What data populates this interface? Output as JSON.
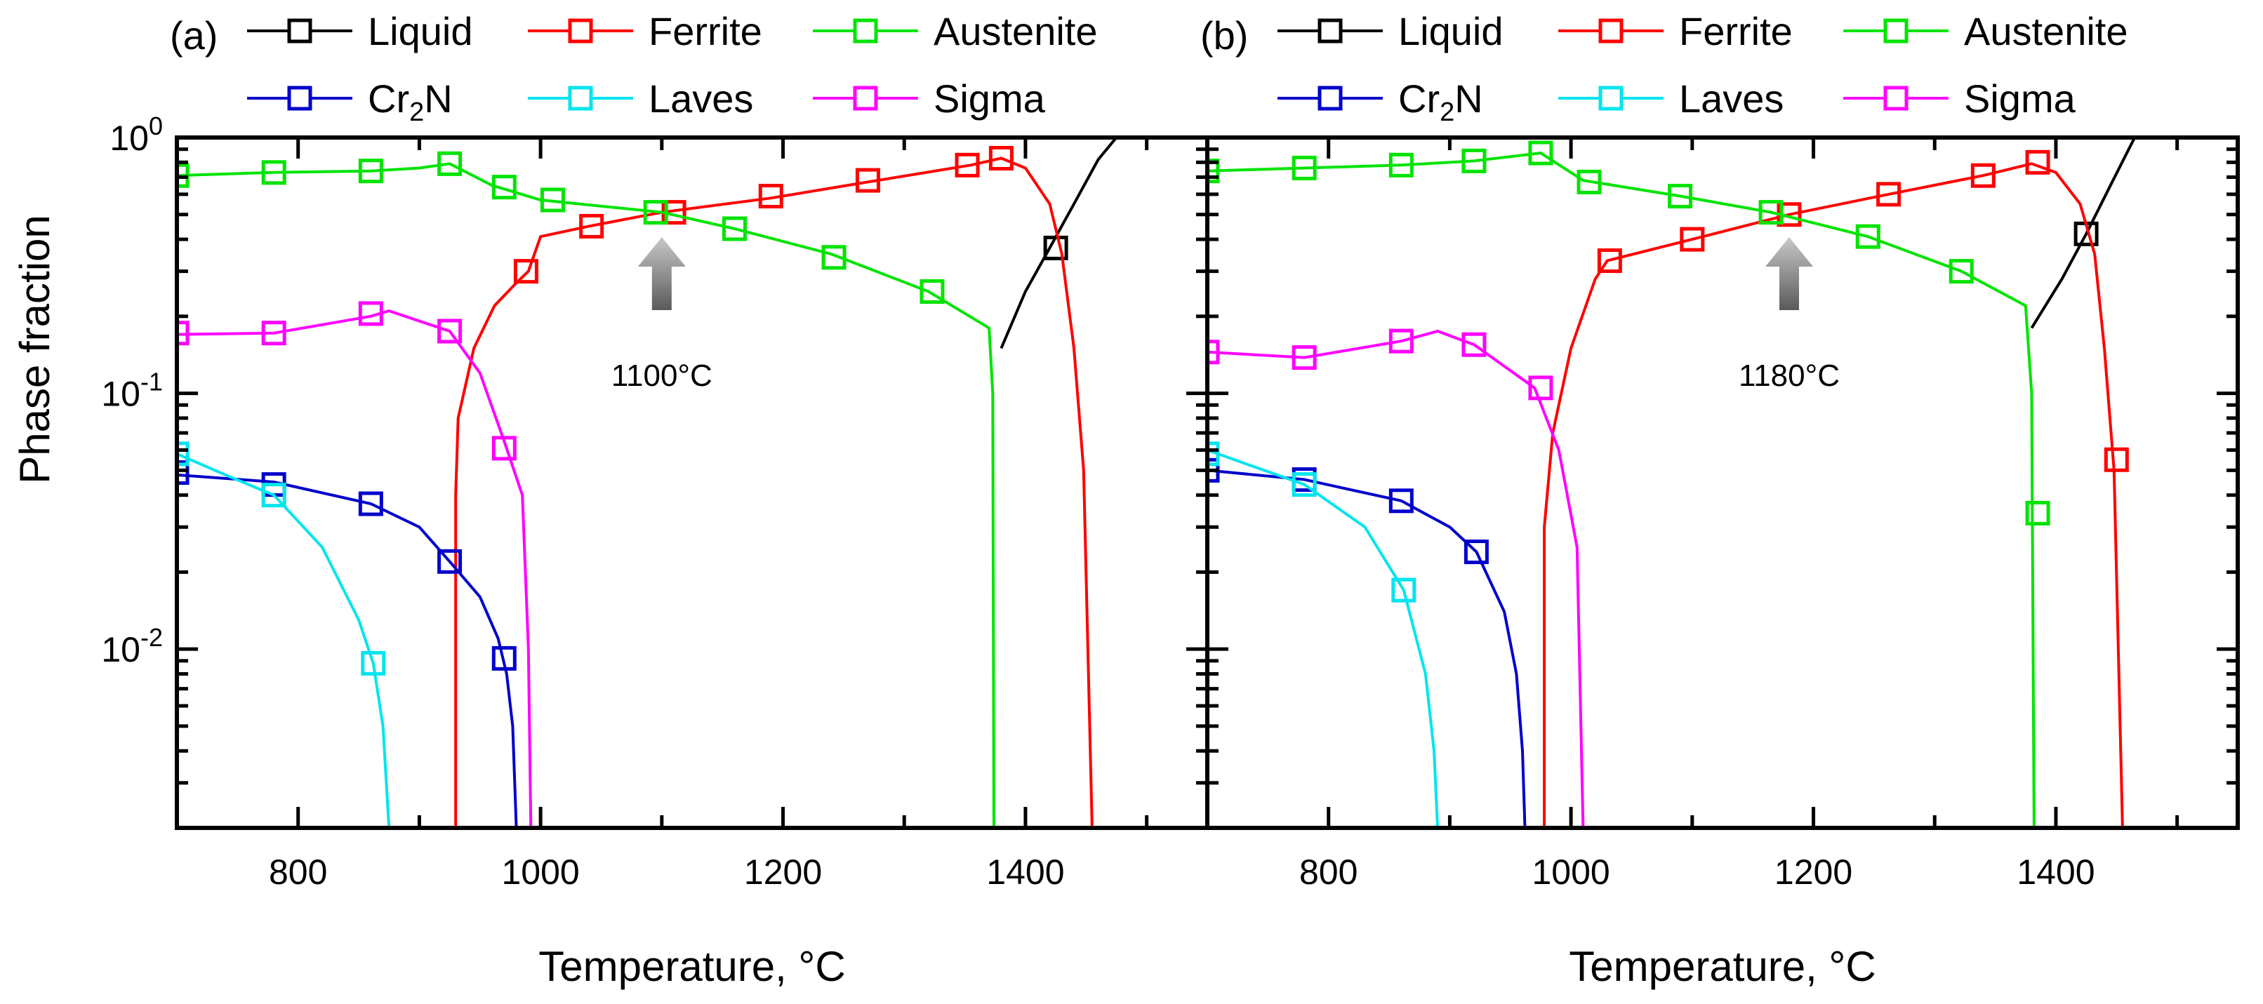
{
  "chart_data": {
    "type": "line",
    "yscale": "log",
    "ylabel": "Phase fraction",
    "xlabel": "Temperature, °C",
    "xlim": [
      700,
      1550
    ],
    "ylim": [
      0.002,
      1
    ],
    "xticks": [
      800,
      1000,
      1200,
      1400
    ],
    "yticks": [
      {
        "base": "10",
        "exp": "-2",
        "value": 0.01
      },
      {
        "base": "10",
        "exp": "-1",
        "value": 0.1
      },
      {
        "base": "10",
        "exp": "0",
        "value": 1
      }
    ],
    "legend": [
      {
        "key": "liquid",
        "label": "Liquid",
        "color": "#000000"
      },
      {
        "key": "ferrite",
        "label": "Ferrite",
        "color": "#ff0000"
      },
      {
        "key": "austenite",
        "label": "Austenite",
        "color": "#00e400"
      },
      {
        "key": "cr2n",
        "label": "Cr",
        "sub": "2",
        "tail": "N",
        "color": "#0000cc"
      },
      {
        "key": "laves",
        "label": "Laves",
        "color": "#00e5ee"
      },
      {
        "key": "sigma",
        "label": "Sigma",
        "color": "#ff00ff"
      }
    ],
    "panels": [
      {
        "label": "(a)",
        "annotation": {
          "text": "1100°C",
          "x": 1100,
          "y": 0.5
        },
        "series": [
          {
            "key": "liquid",
            "name": "Liquid",
            "color": "#000000",
            "line": [
              [
                1380,
                0.15
              ],
              [
                1400,
                0.25
              ],
              [
                1420,
                0.37
              ],
              [
                1440,
                0.55
              ],
              [
                1460,
                0.82
              ],
              [
                1475,
                1.0
              ]
            ],
            "markers": [
              [
                1425,
                0.37
              ]
            ]
          },
          {
            "key": "ferrite",
            "name": "Ferrite",
            "color": "#ff0000",
            "line": [
              [
                930,
                0.002
              ],
              [
                930,
                0.04
              ],
              [
                932,
                0.08
              ],
              [
                945,
                0.15
              ],
              [
                962,
                0.22
              ],
              [
                980,
                0.27
              ],
              [
                990,
                0.3
              ],
              [
                1000,
                0.41
              ],
              [
                1040,
                0.45
              ],
              [
                1100,
                0.51
              ],
              [
                1190,
                0.58
              ],
              [
                1270,
                0.67
              ],
              [
                1355,
                0.78
              ],
              [
                1380,
                0.83
              ],
              [
                1400,
                0.76
              ],
              [
                1420,
                0.55
              ],
              [
                1430,
                0.35
              ],
              [
                1440,
                0.15
              ],
              [
                1448,
                0.05
              ],
              [
                1455,
                0.002
              ]
            ],
            "markers": [
              [
                988,
                0.3
              ],
              [
                1042,
                0.45
              ],
              [
                1110,
                0.51
              ],
              [
                1190,
                0.59
              ],
              [
                1270,
                0.68
              ],
              [
                1352,
                0.78
              ],
              [
                1380,
                0.83
              ]
            ]
          },
          {
            "key": "austenite",
            "name": "Austenite",
            "color": "#00e400",
            "line": [
              [
                700,
                0.71
              ],
              [
                780,
                0.73
              ],
              [
                860,
                0.74
              ],
              [
                900,
                0.76
              ],
              [
                925,
                0.79
              ],
              [
                960,
                0.65
              ],
              [
                1000,
                0.57
              ],
              [
                1100,
                0.51
              ],
              [
                1160,
                0.44
              ],
              [
                1240,
                0.35
              ],
              [
                1320,
                0.25
              ],
              [
                1370,
                0.18
              ],
              [
                1373,
                0.1
              ],
              [
                1374,
                0.002
              ]
            ],
            "markers": [
              [
                700,
                0.71
              ],
              [
                780,
                0.73
              ],
              [
                860,
                0.74
              ],
              [
                925,
                0.79
              ],
              [
                970,
                0.64
              ],
              [
                1010,
                0.57
              ],
              [
                1095,
                0.51
              ],
              [
                1160,
                0.44
              ],
              [
                1242,
                0.34
              ],
              [
                1323,
                0.25
              ]
            ]
          },
          {
            "key": "cr2n",
            "name": "Cr2N",
            "color": "#0000cc",
            "line": [
              [
                700,
                0.048
              ],
              [
                780,
                0.045
              ],
              [
                860,
                0.037
              ],
              [
                900,
                0.03
              ],
              [
                925,
                0.022
              ],
              [
                950,
                0.016
              ],
              [
                965,
                0.011
              ],
              [
                972,
                0.008
              ],
              [
                977,
                0.005
              ],
              [
                980,
                0.002
              ]
            ],
            "markers": [
              [
                700,
                0.049
              ],
              [
                780,
                0.044
              ],
              [
                860,
                0.037
              ],
              [
                925,
                0.022
              ],
              [
                970,
                0.0092
              ]
            ]
          },
          {
            "key": "laves",
            "name": "Laves",
            "color": "#00e5ee",
            "line": [
              [
                700,
                0.058
              ],
              [
                740,
                0.048
              ],
              [
                780,
                0.04
              ],
              [
                820,
                0.025
              ],
              [
                850,
                0.013
              ],
              [
                862,
                0.0088
              ],
              [
                870,
                0.005
              ],
              [
                875,
                0.002
              ]
            ],
            "markers": [
              [
                700,
                0.058
              ],
              [
                780,
                0.04
              ],
              [
                862,
                0.0088
              ]
            ]
          },
          {
            "key": "sigma",
            "name": "Sigma",
            "color": "#ff00ff",
            "line": [
              [
                700,
                0.17
              ],
              [
                780,
                0.172
              ],
              [
                860,
                0.2
              ],
              [
                875,
                0.21
              ],
              [
                925,
                0.175
              ],
              [
                950,
                0.12
              ],
              [
                970,
                0.065
              ],
              [
                985,
                0.04
              ],
              [
                990,
                0.01
              ],
              [
                992,
                0.002
              ]
            ],
            "markers": [
              [
                700,
                0.172
              ],
              [
                780,
                0.172
              ],
              [
                860,
                0.205
              ],
              [
                925,
                0.175
              ],
              [
                970,
                0.061
              ]
            ]
          }
        ]
      },
      {
        "label": "(b)",
        "annotation": {
          "text": "1180°C",
          "x": 1180,
          "y": 0.5
        },
        "series": [
          {
            "key": "liquid",
            "name": "Liquid",
            "color": "#000000",
            "line": [
              [
                1380,
                0.18
              ],
              [
                1405,
                0.28
              ],
              [
                1425,
                0.42
              ],
              [
                1445,
                0.65
              ],
              [
                1465,
                1.0
              ]
            ],
            "markers": [
              [
                1425,
                0.42
              ]
            ]
          },
          {
            "key": "ferrite",
            "name": "Ferrite",
            "color": "#ff0000",
            "line": [
              [
                978,
                0.002
              ],
              [
                978,
                0.03
              ],
              [
                985,
                0.07
              ],
              [
                1000,
                0.15
              ],
              [
                1020,
                0.28
              ],
              [
                1030,
                0.33
              ],
              [
                1100,
                0.4
              ],
              [
                1180,
                0.5
              ],
              [
                1262,
                0.6
              ],
              [
                1340,
                0.71
              ],
              [
                1380,
                0.79
              ],
              [
                1400,
                0.73
              ],
              [
                1420,
                0.55
              ],
              [
                1432,
                0.35
              ],
              [
                1440,
                0.15
              ],
              [
                1448,
                0.05
              ],
              [
                1455,
                0.002
              ]
            ],
            "markers": [
              [
                1032,
                0.33
              ],
              [
                1100,
                0.4
              ],
              [
                1180,
                0.5
              ],
              [
                1262,
                0.6
              ],
              [
                1340,
                0.71
              ],
              [
                1385,
                0.8
              ],
              [
                1450,
                0.055
              ]
            ]
          },
          {
            "key": "austenite",
            "name": "Austenite",
            "color": "#00e400",
            "line": [
              [
                700,
                0.74
              ],
              [
                780,
                0.76
              ],
              [
                860,
                0.78
              ],
              [
                920,
                0.81
              ],
              [
                975,
                0.87
              ],
              [
                1010,
                0.68
              ],
              [
                1090,
                0.59
              ],
              [
                1165,
                0.51
              ],
              [
                1245,
                0.41
              ],
              [
                1322,
                0.3
              ],
              [
                1375,
                0.22
              ],
              [
                1380,
                0.1
              ],
              [
                1382,
                0.002
              ]
            ],
            "markers": [
              [
                700,
                0.74
              ],
              [
                780,
                0.76
              ],
              [
                860,
                0.78
              ],
              [
                920,
                0.81
              ],
              [
                975,
                0.87
              ],
              [
                1015,
                0.67
              ],
              [
                1090,
                0.59
              ],
              [
                1165,
                0.51
              ],
              [
                1245,
                0.41
              ],
              [
                1322,
                0.3
              ],
              [
                1385,
                0.034
              ]
            ]
          },
          {
            "key": "cr2n",
            "name": "Cr2N",
            "color": "#0000cc",
            "line": [
              [
                700,
                0.05
              ],
              [
                780,
                0.046
              ],
              [
                860,
                0.038
              ],
              [
                900,
                0.03
              ],
              [
                922,
                0.024
              ],
              [
                945,
                0.014
              ],
              [
                955,
                0.008
              ],
              [
                960,
                0.004
              ],
              [
                962,
                0.002
              ]
            ],
            "markers": [
              [
                700,
                0.05
              ],
              [
                780,
                0.046
              ],
              [
                860,
                0.038
              ],
              [
                922,
                0.024
              ]
            ]
          },
          {
            "key": "laves",
            "name": "Laves",
            "color": "#00e5ee",
            "line": [
              [
                700,
                0.06
              ],
              [
                780,
                0.044
              ],
              [
                830,
                0.03
              ],
              [
                862,
                0.017
              ],
              [
                880,
                0.008
              ],
              [
                887,
                0.004
              ],
              [
                890,
                0.002
              ]
            ],
            "markers": [
              [
                700,
                0.058
              ],
              [
                780,
                0.044
              ],
              [
                862,
                0.017
              ]
            ]
          },
          {
            "key": "sigma",
            "name": "Sigma",
            "color": "#ff00ff",
            "line": [
              [
                700,
                0.145
              ],
              [
                780,
                0.138
              ],
              [
                860,
                0.16
              ],
              [
                890,
                0.175
              ],
              [
                920,
                0.155
              ],
              [
                970,
                0.105
              ],
              [
                990,
                0.06
              ],
              [
                1005,
                0.025
              ],
              [
                1010,
                0.002
              ]
            ],
            "markers": [
              [
                700,
                0.145
              ],
              [
                780,
                0.138
              ],
              [
                860,
                0.16
              ],
              [
                920,
                0.155
              ],
              [
                975,
                0.105
              ]
            ]
          }
        ]
      }
    ]
  }
}
